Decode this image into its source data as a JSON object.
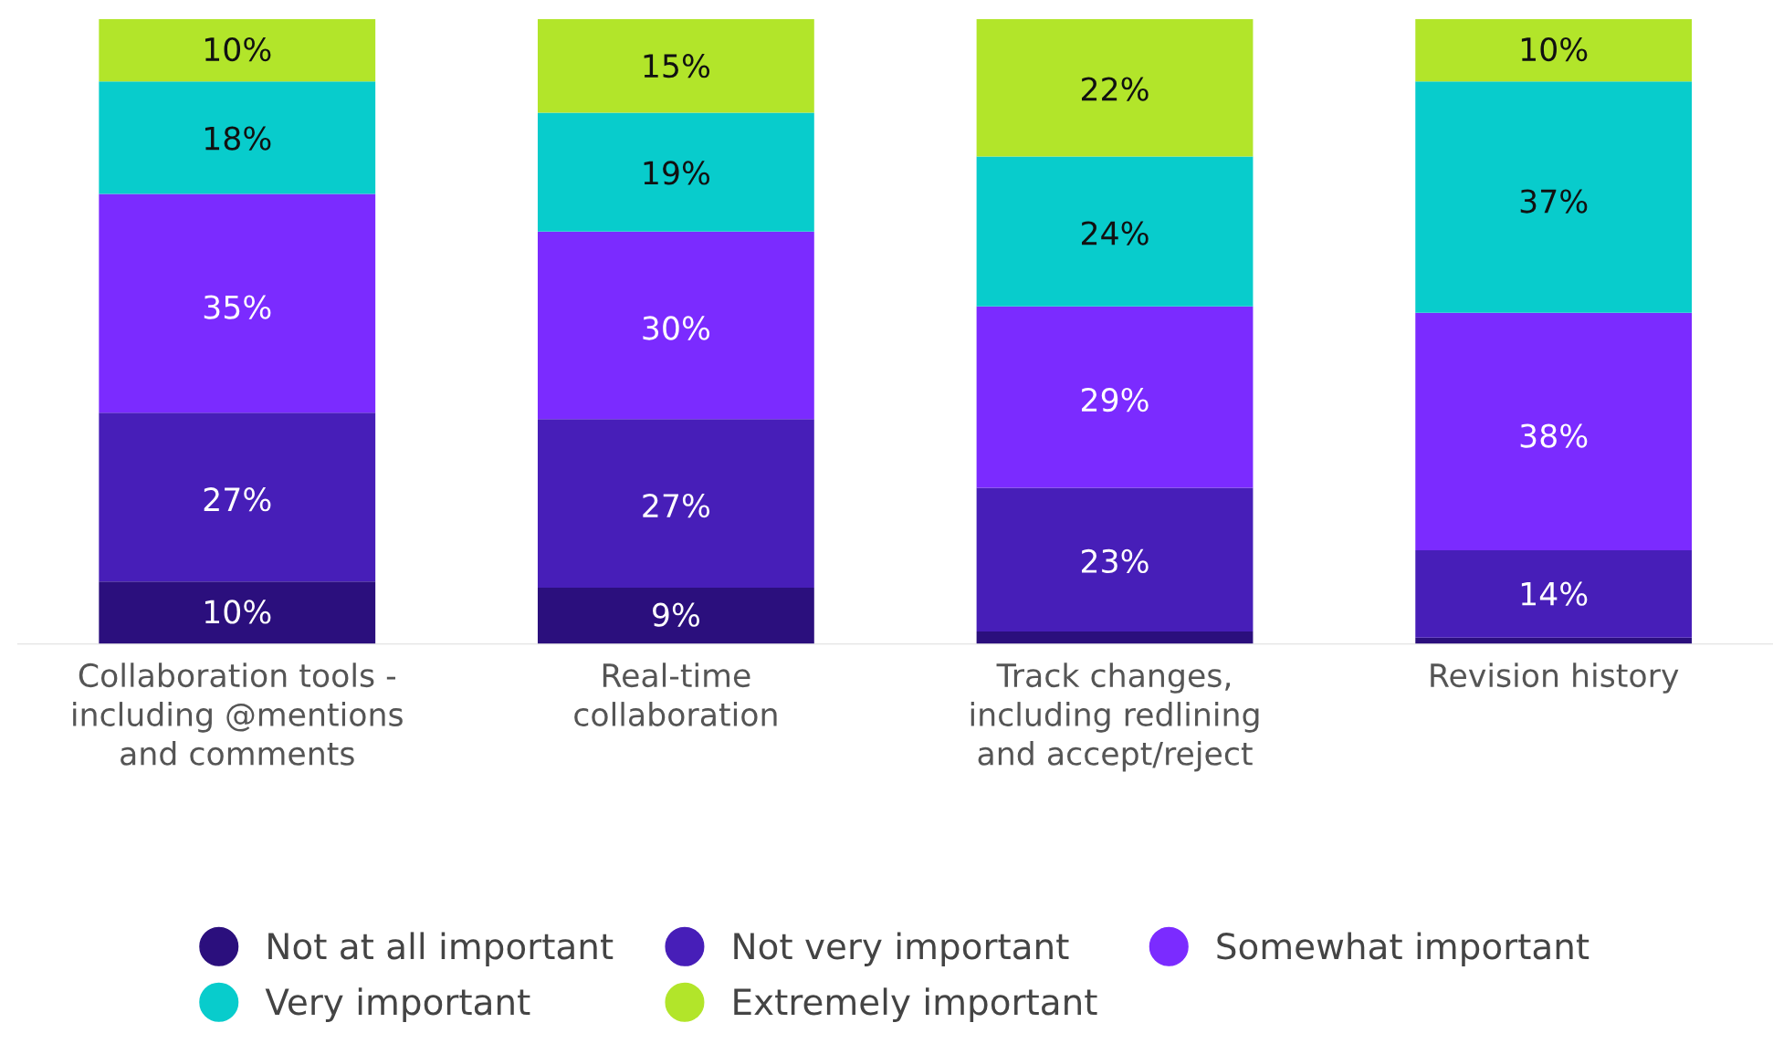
{
  "chart_data": {
    "type": "bar",
    "stacked": true,
    "legend": "bottom",
    "marker": "circle",
    "grid": false,
    "tick_labels": "x",
    "categories": [
      "Collaboration tools - including @mentions and comments",
      "Real-time collaboration",
      "Track changes, including redlining and accept/reject",
      "Revision history"
    ],
    "series": [
      {
        "name": "Not at all important",
        "color": "#2b0f7d",
        "values": [
          10,
          9,
          2,
          1
        ],
        "value_labels": [
          "10%",
          "9%",
          null,
          null
        ]
      },
      {
        "name": "Not very important",
        "color": "#471eb8",
        "values": [
          27,
          27,
          23,
          14
        ],
        "value_labels": [
          "27%",
          "27%",
          "23%",
          "14%"
        ]
      },
      {
        "name": "Somewhat important",
        "color": "#7b2bff",
        "values": [
          35,
          30,
          29,
          38
        ],
        "value_labels": [
          "35%",
          "30%",
          "29%",
          "38%"
        ]
      },
      {
        "name": "Very important",
        "color": "#08cccc",
        "values": [
          18,
          19,
          24,
          37
        ],
        "value_labels": [
          "18%",
          "19%",
          "24%",
          "37%"
        ]
      },
      {
        "name": "Extremely important",
        "color": "#b2e52a",
        "values": [
          10,
          15,
          22,
          10
        ],
        "value_labels": [
          "10%",
          "15%",
          "22%",
          "10%"
        ]
      }
    ]
  }
}
